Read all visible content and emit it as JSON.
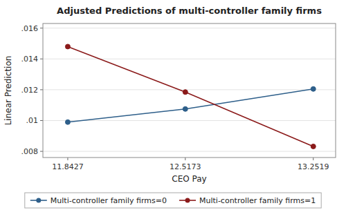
{
  "chart_data": {
    "type": "line",
    "title": "Adjusted Predictions of multi-controller family firms",
    "xlabel": "CEO Pay",
    "ylabel": "Linear Prediction",
    "x": [
      11.8427,
      12.5173,
      13.2519
    ],
    "series": [
      {
        "name": "Multi-controller family firms=0",
        "color": "#2e5f8a",
        "marker": "circle",
        "values": [
          0.0099,
          0.01075,
          0.01205
        ]
      },
      {
        "name": "Multi-controller family firms=1",
        "color": "#8b1a1a",
        "marker": "circle",
        "values": [
          0.0148,
          0.01185,
          0.00832
        ]
      }
    ],
    "xlim": [
      11.7,
      13.38
    ],
    "xticks": [
      11.8427,
      12.5173,
      13.2519
    ],
    "ylim": [
      0.0076,
      0.0163
    ],
    "yticks": [
      {
        "value": 0.008,
        "label": ".008"
      },
      {
        "value": 0.01,
        "label": ".01"
      },
      {
        "value": 0.012,
        "label": ".012"
      },
      {
        "value": 0.014,
        "label": ".014"
      },
      {
        "value": 0.016,
        "label": ".016"
      }
    ],
    "grid": "y",
    "legend": "bottom"
  }
}
